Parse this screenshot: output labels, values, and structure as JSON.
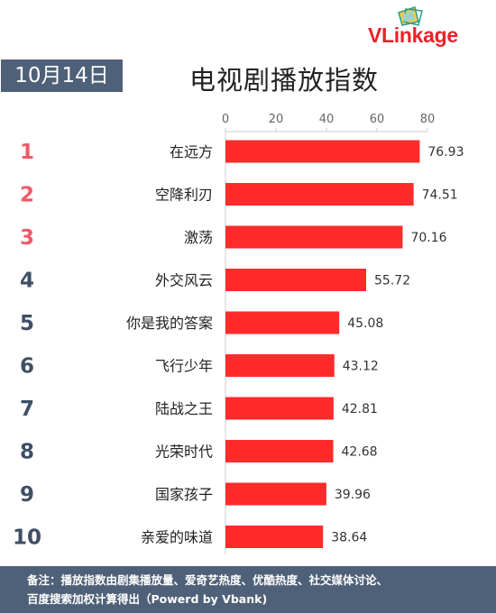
{
  "brand": {
    "logo_text_a": "VL",
    "logo_text_b": "inkage"
  },
  "header": {
    "date": "10月14日",
    "title": "电视剧播放指数"
  },
  "footer": {
    "line1": "备注：播放指数由剧集播放量、爱奇艺热度、优酷热度、社交媒体讨论、",
    "line2": "百度搜索加权计算得出（Powerd by Vbank)"
  },
  "colors": {
    "bar": "#ff2a2a",
    "rank_top": "#f05a68",
    "rank_other": "#3e4f66",
    "badge": "#4f6178"
  },
  "chart_data": {
    "type": "bar",
    "orientation": "horizontal",
    "title": "电视剧播放指数",
    "ranks": [
      "1",
      "2",
      "3",
      "4",
      "5",
      "6",
      "7",
      "8",
      "9",
      "10"
    ],
    "categories": [
      "在远方",
      "空降利刃",
      "激荡",
      "外交风云",
      "你是我的答案",
      "飞行少年",
      "陆战之王",
      "光荣时代",
      "国家孩子",
      "亲爱的味道"
    ],
    "values": [
      76.93,
      74.51,
      70.16,
      55.72,
      45.08,
      43.12,
      42.81,
      42.68,
      39.96,
      38.64
    ],
    "value_labels": [
      "76.93",
      "74.51",
      "70.16",
      "55.72",
      "45.08",
      "43.12",
      "42.81",
      "42.68",
      "39.96",
      "38.64"
    ],
    "xlim": [
      0,
      80
    ],
    "ticks": [
      0,
      20,
      40,
      60,
      80
    ],
    "tick_labels": [
      "0",
      "20",
      "40",
      "60",
      "80"
    ],
    "axis_position": "top",
    "grid": false
  }
}
